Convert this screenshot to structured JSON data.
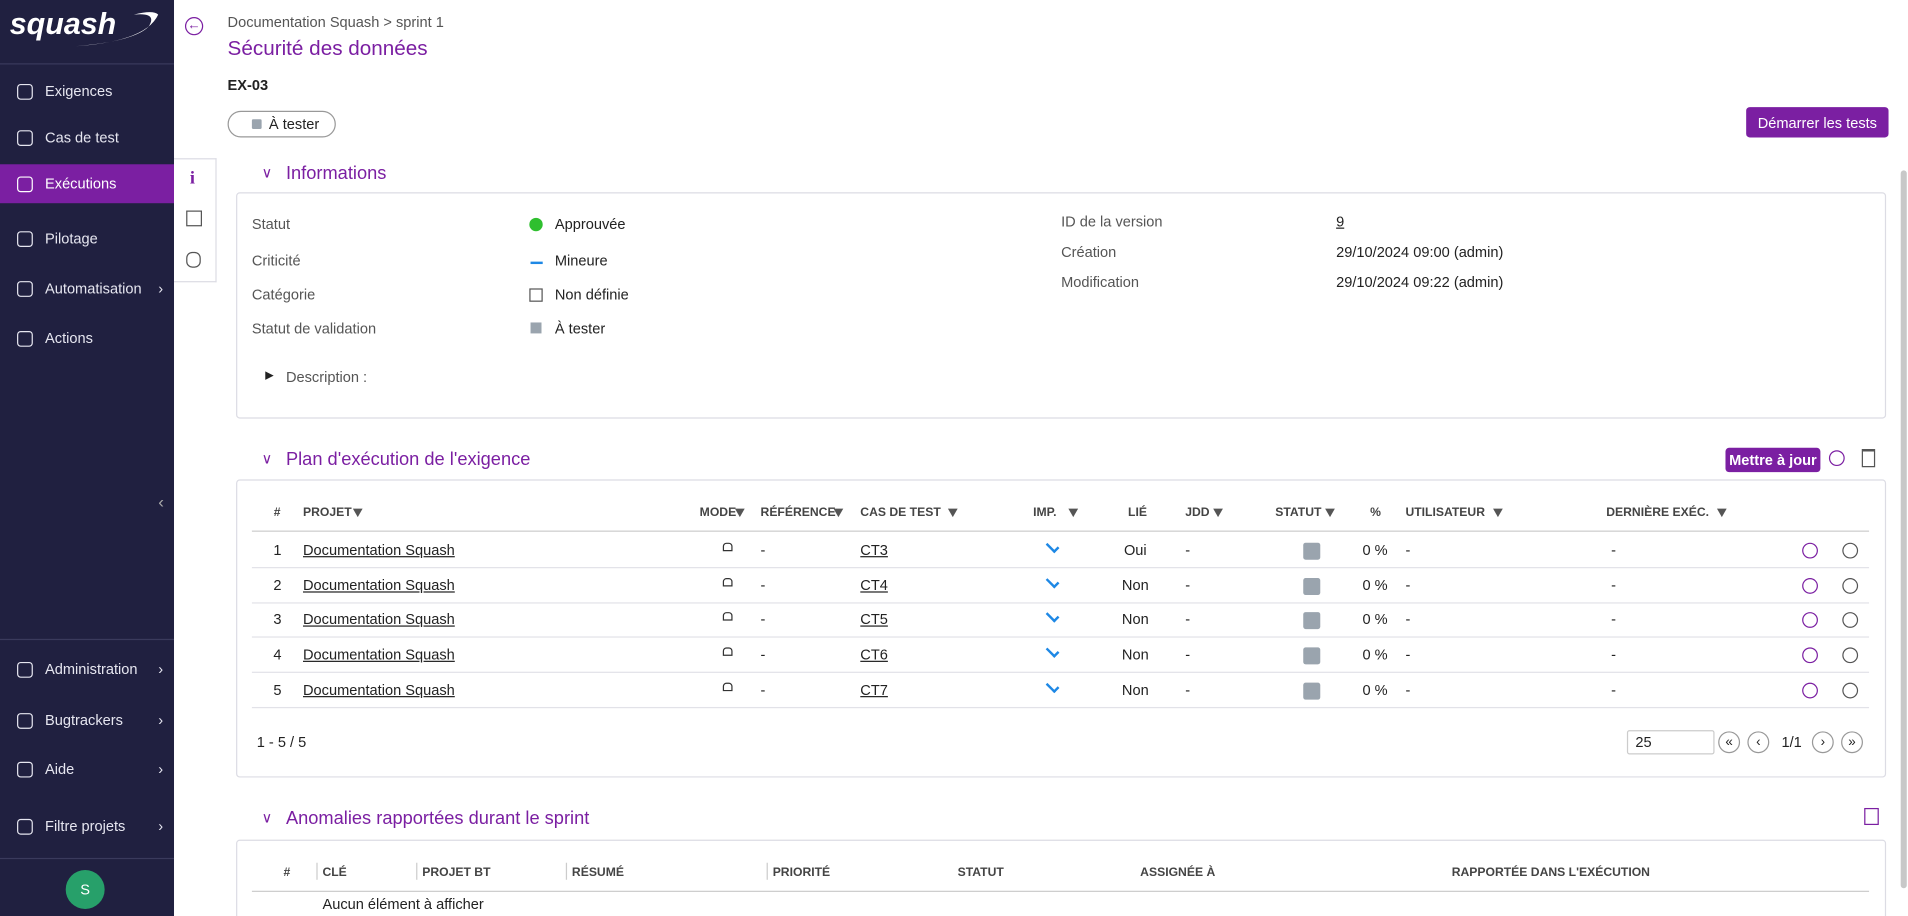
{
  "sidebar": {
    "logo": "squash",
    "items": [
      "Exigences",
      "Cas de test",
      "Exécutions",
      "Pilotage",
      "Automatisation",
      "Actions"
    ],
    "bottom_items": [
      "Administration",
      "Bugtrackers",
      "Aide",
      "Filtre projets"
    ],
    "avatar": "S"
  },
  "header": {
    "breadcrumb": "Documentation Squash > sprint 1",
    "title": "Sécurité des données",
    "reference": "EX-03",
    "status": "À tester",
    "start_button": "Démarrer les tests"
  },
  "informations": {
    "title": "Informations",
    "left": [
      [
        "Statut",
        "Approuvée"
      ],
      [
        "Criticité",
        "Mineure"
      ],
      [
        "Catégorie",
        "Non définie"
      ],
      [
        "Statut de validation",
        "À tester"
      ]
    ],
    "right": [
      [
        "ID de la version",
        "9"
      ],
      [
        "Création",
        "29/10/2024 09:00 (admin)"
      ],
      [
        "Modification",
        "29/10/2024 09:22 (admin)"
      ]
    ],
    "description": "Description :"
  },
  "plan": {
    "title": "Plan d'exécution de l'exigence",
    "update_button": "Mettre à jour",
    "columns": [
      "#",
      "PROJET",
      "MODE",
      "RÉFÉRENCE",
      "CAS DE TEST",
      "IMP.",
      "LIÉ",
      "JDD",
      "STATUT",
      "%",
      "UTILISATEUR",
      "DERNIÈRE EXÉC."
    ],
    "rows": [
      [
        1,
        "Documentation Squash",
        null,
        "-",
        "CT3",
        null,
        "Oui",
        "-",
        null,
        "0 %",
        "-",
        "-"
      ],
      [
        2,
        "Documentation Squash",
        null,
        "-",
        "CT4",
        null,
        "Non",
        "-",
        null,
        "0 %",
        "-",
        "-"
      ],
      [
        3,
        "Documentation Squash",
        null,
        "-",
        "CT5",
        null,
        "Non",
        "-",
        null,
        "0 %",
        "-",
        "-"
      ],
      [
        4,
        "Documentation Squash",
        null,
        "-",
        "CT6",
        null,
        "Non",
        "-",
        null,
        "0 %",
        "-",
        "-"
      ],
      [
        5,
        "Documentation Squash",
        null,
        "-",
        "CT7",
        null,
        "Non",
        "-",
        null,
        "0 %",
        "-",
        "-"
      ]
    ],
    "pagination": "1 - 5 / 5",
    "page_size": "25",
    "page": "1/1"
  },
  "anomalies": {
    "title": "Anomalies rapportées durant le sprint",
    "columns": [
      "#",
      "CLÉ",
      "PROJET BT",
      "RÉSUMÉ",
      "PRIORITÉ",
      "STATUT",
      "ASSIGNÉE À",
      "RAPPORTÉE DANS L'EXÉCUTION"
    ],
    "empty": "Aucun élément à afficher"
  }
}
